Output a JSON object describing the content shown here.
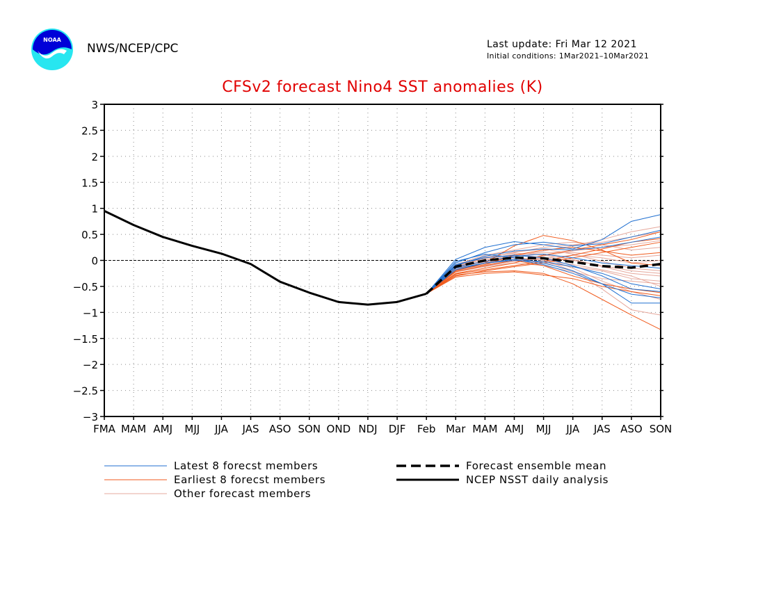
{
  "header": {
    "agency": "NWS/NCEP/CPC",
    "last_update": "Last update: Fri Mar 12 2021",
    "initial_conditions": "Initial conditions: 1Mar2021–10Mar2021",
    "logo_text": "NOAA"
  },
  "colors": {
    "title": "#e10000",
    "latest": "#1f6fd0",
    "earliest": "#f05a1c",
    "other": "#e6a89c",
    "analysis": "#000000"
  },
  "chart_data": {
    "type": "line",
    "title": "CFSv2 forecast Nino4 SST anomalies (K)",
    "xlabel": "",
    "ylabel": "",
    "x_categories": [
      "FMA",
      "MAM",
      "AMJ",
      "MJJ",
      "JJA",
      "JAS",
      "ASO",
      "SON",
      "OND",
      "NDJ",
      "DJF",
      "Feb",
      "Mar",
      "MAM",
      "AMJ",
      "MJJ",
      "JJA",
      "JAS",
      "ASO",
      "SON"
    ],
    "ylim": [
      -3,
      3
    ],
    "yticks": [
      3,
      2.5,
      2,
      1.5,
      1,
      0.5,
      0,
      -0.5,
      -1,
      -1.5,
      -2,
      -2.5,
      -3
    ],
    "ytick_labels": [
      "3",
      "2.5",
      "2",
      "1.5",
      "1",
      "0.5",
      "0",
      "−0.5",
      "−1",
      "−1.5",
      "−2",
      "−2.5",
      "−3"
    ],
    "grid": true,
    "zero_line": true,
    "analysis": {
      "name": "NCEP NSST daily analysis",
      "x_index": [
        0,
        1,
        2,
        3,
        4,
        5,
        6,
        7,
        8,
        9,
        10,
        11
      ],
      "values": [
        0.95,
        0.68,
        0.45,
        0.28,
        0.13,
        -0.07,
        -0.41,
        -0.62,
        -0.8,
        -0.85,
        -0.8,
        -0.64
      ]
    },
    "ensemble_mean": {
      "name": "Forecast ensemble mean",
      "x_index": [
        11,
        12,
        13,
        14,
        15,
        16,
        17,
        18,
        19
      ],
      "values": [
        -0.64,
        -0.12,
        0.0,
        0.05,
        0.04,
        -0.03,
        -0.11,
        -0.14,
        -0.07
      ]
    },
    "member_x_index": [
      11,
      12,
      13,
      14,
      15,
      16,
      17,
      18,
      19
    ],
    "latest_members": {
      "name": "Latest 8 forecst members",
      "series": [
        [
          -0.64,
          0.02,
          0.25,
          0.36,
          0.3,
          0.22,
          0.4,
          0.75,
          0.88
        ],
        [
          -0.64,
          -0.05,
          0.15,
          0.3,
          0.35,
          0.28,
          0.32,
          0.45,
          0.58
        ],
        [
          -0.64,
          -0.1,
          0.08,
          0.18,
          0.22,
          0.2,
          0.25,
          0.35,
          0.45
        ],
        [
          -0.64,
          -0.02,
          0.12,
          0.05,
          -0.05,
          -0.2,
          -0.45,
          -0.82,
          -0.82
        ],
        [
          -0.64,
          -0.15,
          -0.05,
          0.02,
          -0.08,
          -0.25,
          -0.45,
          -0.65,
          -0.72
        ],
        [
          -0.64,
          -0.08,
          0.05,
          0.1,
          0.05,
          -0.1,
          -0.3,
          -0.55,
          -0.6
        ],
        [
          -0.64,
          -0.12,
          -0.02,
          0.08,
          0.12,
          0.05,
          -0.05,
          -0.1,
          -0.15
        ],
        [
          -0.64,
          -0.18,
          -0.05,
          0.0,
          -0.02,
          -0.12,
          -0.25,
          -0.45,
          -0.55
        ]
      ]
    },
    "earliest_members": {
      "name": "Earliest 8 forecst members",
      "series": [
        [
          -0.64,
          -0.2,
          -0.05,
          0.28,
          0.48,
          0.38,
          0.2,
          -0.05,
          -0.1
        ],
        [
          -0.64,
          -0.25,
          -0.15,
          -0.05,
          0.1,
          0.2,
          0.3,
          0.4,
          0.55
        ],
        [
          -0.64,
          -0.3,
          -0.2,
          -0.12,
          -0.05,
          0.05,
          0.15,
          0.25,
          0.35
        ],
        [
          -0.64,
          -0.28,
          -0.22,
          -0.2,
          -0.25,
          -0.45,
          -0.75,
          -1.05,
          -1.33
        ],
        [
          -0.64,
          -0.22,
          -0.1,
          0.0,
          -0.1,
          -0.3,
          -0.45,
          -0.55,
          -0.62
        ],
        [
          -0.64,
          -0.32,
          -0.25,
          -0.22,
          -0.28,
          -0.35,
          -0.5,
          -0.6,
          -0.68
        ],
        [
          -0.64,
          -0.18,
          -0.08,
          0.1,
          0.2,
          0.25,
          0.18,
          0.1,
          0.15
        ],
        [
          -0.64,
          -0.26,
          -0.18,
          -0.1,
          -0.02,
          0.1,
          0.22,
          0.35,
          0.42
        ]
      ]
    },
    "other_members": {
      "name": "Other forecast members",
      "series": [
        [
          -0.64,
          -0.1,
          0.05,
          0.15,
          0.25,
          0.3,
          0.35,
          0.45,
          0.55
        ],
        [
          -0.64,
          -0.15,
          0.0,
          0.1,
          0.15,
          0.15,
          0.1,
          0.05,
          0.1
        ],
        [
          -0.64,
          -0.2,
          -0.1,
          0.0,
          0.05,
          0.0,
          -0.1,
          -0.2,
          -0.25
        ],
        [
          -0.64,
          -0.12,
          0.02,
          0.12,
          0.05,
          -0.15,
          -0.4,
          -0.6,
          -0.75
        ],
        [
          -0.64,
          -0.18,
          -0.05,
          0.05,
          0.0,
          -0.2,
          -0.55,
          -0.95,
          -1.05
        ],
        [
          -0.64,
          -0.08,
          0.1,
          0.2,
          0.3,
          0.35,
          0.3,
          0.2,
          0.25
        ],
        [
          -0.64,
          -0.22,
          -0.12,
          -0.05,
          -0.1,
          -0.22,
          -0.35,
          -0.4,
          -0.45
        ],
        [
          -0.64,
          -0.14,
          -0.02,
          0.08,
          0.18,
          0.28,
          0.4,
          0.55,
          0.65
        ],
        [
          -0.64,
          -0.16,
          -0.06,
          0.02,
          -0.05,
          -0.12,
          -0.2,
          -0.35,
          -0.4
        ],
        [
          -0.64,
          -0.11,
          0.04,
          0.16,
          0.22,
          0.12,
          -0.02,
          -0.15,
          -0.2
        ],
        [
          -0.64,
          -0.19,
          -0.08,
          0.0,
          0.08,
          0.18,
          0.25,
          0.3,
          0.38
        ],
        [
          -0.64,
          -0.13,
          -0.03,
          0.06,
          0.0,
          -0.08,
          -0.18,
          -0.3,
          -0.5
        ],
        [
          -0.64,
          -0.09,
          0.06,
          0.14,
          0.1,
          0.02,
          -0.12,
          -0.25,
          -0.3
        ],
        [
          -0.64,
          -0.21,
          -0.11,
          -0.02,
          0.04,
          0.1,
          0.05,
          -0.05,
          0.0
        ]
      ]
    },
    "legend": [
      {
        "label": "Latest 8 forecst members",
        "style": "thin-blue"
      },
      {
        "label": "Earliest 8 forecst members",
        "style": "thin-orange"
      },
      {
        "label": "Other forecast members",
        "style": "thin-pink"
      },
      {
        "label": "Forecast ensemble mean",
        "style": "thick-dashed"
      },
      {
        "label": "NCEP NSST daily analysis",
        "style": "thick-solid"
      }
    ]
  }
}
